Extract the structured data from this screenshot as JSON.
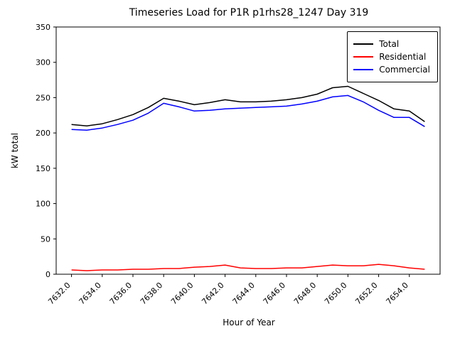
{
  "chart_data": {
    "type": "line",
    "title": "Timeseries Load for P1R p1rhs28_1247  Day 319",
    "xlabel": "Hour of Year",
    "ylabel": "kW total",
    "xlim": [
      7631,
      7656
    ],
    "ylim": [
      0,
      350
    ],
    "xticks": [
      "7632.0",
      "7634.0",
      "7636.0",
      "7638.0",
      "7640.0",
      "7642.0",
      "7644.0",
      "7646.0",
      "7648.0",
      "7650.0",
      "7652.0",
      "7654.0"
    ],
    "yticks": [
      0,
      50,
      100,
      150,
      200,
      250,
      300,
      350
    ],
    "grid": false,
    "legend_position": "upper right",
    "x": [
      7632,
      7633,
      7634,
      7635,
      7636,
      7637,
      7638,
      7639,
      7640,
      7641,
      7642,
      7643,
      7644,
      7645,
      7646,
      7647,
      7648,
      7649,
      7650,
      7651,
      7652,
      7653,
      7654,
      7655
    ],
    "series": [
      {
        "name": "Total",
        "color": "#000000",
        "values": [
          212,
          210,
          213,
          219,
          226,
          236,
          249,
          245,
          240,
          243,
          247,
          244,
          244,
          245,
          247,
          250,
          255,
          264,
          266,
          256,
          246,
          234,
          231,
          216
        ]
      },
      {
        "name": "Residential",
        "color": "#ff0000",
        "values": [
          6,
          5,
          6,
          6,
          7,
          7,
          8,
          8,
          10,
          11,
          13,
          9,
          8,
          8,
          9,
          9,
          11,
          13,
          12,
          12,
          14,
          12,
          9,
          7
        ]
      },
      {
        "name": "Commercial",
        "color": "#0000ff",
        "values": [
          205,
          204,
          207,
          212,
          218,
          228,
          242,
          237,
          231,
          232,
          234,
          235,
          236,
          237,
          238,
          241,
          245,
          251,
          253,
          244,
          232,
          222,
          222,
          209
        ]
      }
    ]
  }
}
